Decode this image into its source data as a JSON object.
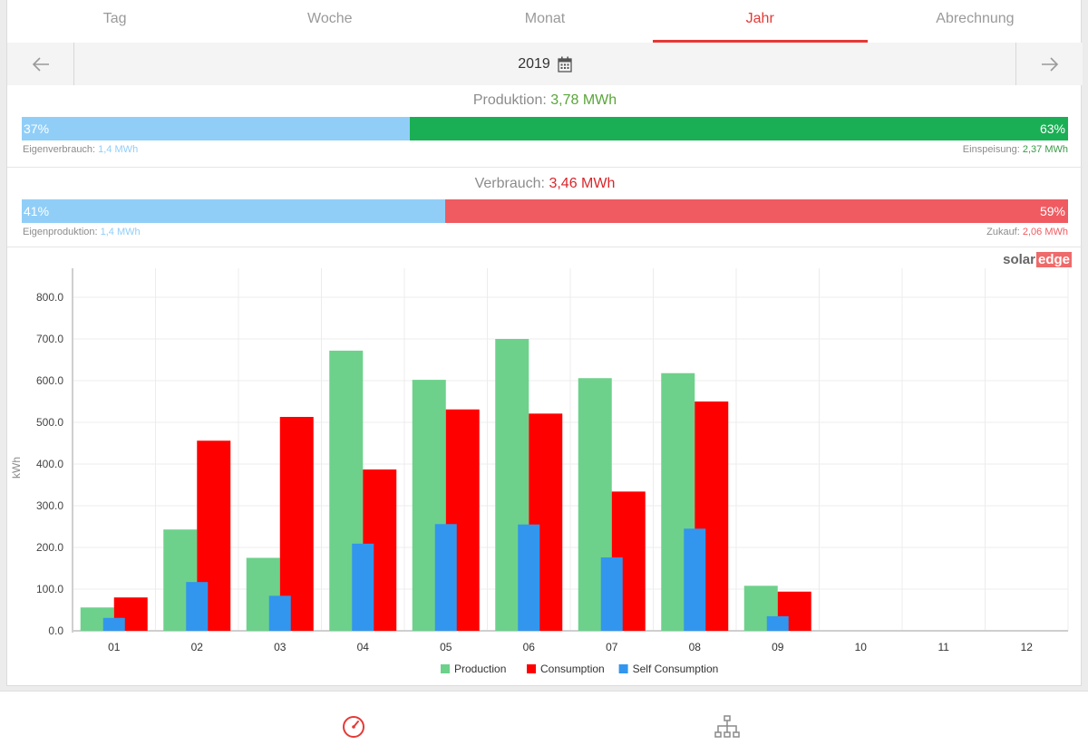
{
  "tabs": [
    {
      "label": "Tag",
      "active": false
    },
    {
      "label": "Woche",
      "active": false
    },
    {
      "label": "Monat",
      "active": false
    },
    {
      "label": "Jahr",
      "active": true
    },
    {
      "label": "Abrechnung",
      "active": false
    }
  ],
  "nav": {
    "year": "2019",
    "prev_icon": "arrow-left-icon",
    "next_icon": "arrow-right-icon",
    "calendar_icon": "calendar-icon"
  },
  "production": {
    "label": "Produktion:",
    "value": "3,78 MWh",
    "left_pct": "37%",
    "right_pct": "63%",
    "left_fraction": 0.371,
    "left_caption": "Eigenverbrauch:",
    "left_value": "1,4 MWh",
    "right_caption": "Einspeisung:",
    "right_value": "2,37 MWh",
    "colors": {
      "left": "#90cef8",
      "right": "#1aaf54",
      "value": "#5aa53a"
    }
  },
  "consumption": {
    "label": "Verbrauch:",
    "value": "3,46 MWh",
    "left_pct": "41%",
    "right_pct": "59%",
    "left_fraction": 0.405,
    "left_caption": "Eigenproduktion:",
    "left_value": "1,4 MWh",
    "right_caption": "Zukauf:",
    "right_value": "2,06 MWh",
    "colors": {
      "left": "#90cef8",
      "right": "#ef5b61",
      "value": "#d9262b"
    }
  },
  "logo": {
    "part1": "solar",
    "part2": "edge"
  },
  "chart_data": {
    "type": "bar",
    "ylabel": "kWh",
    "ylim": [
      0,
      800
    ],
    "yticks": [
      "0.0",
      "100.0",
      "200.0",
      "300.0",
      "400.0",
      "500.0",
      "600.0",
      "700.0",
      "800.0"
    ],
    "categories": [
      "01",
      "02",
      "03",
      "04",
      "05",
      "06",
      "07",
      "08",
      "09",
      "10",
      "11",
      "12"
    ],
    "grid": true,
    "legend": "bottom",
    "series": [
      {
        "name": "Production",
        "color": "#6dd18b",
        "values": [
          56,
          243,
          175,
          672,
          602,
          700,
          606,
          618,
          108,
          0,
          0,
          0
        ]
      },
      {
        "name": "Consumption",
        "color": "#ff0000",
        "values": [
          80,
          456,
          513,
          387,
          531,
          521,
          334,
          550,
          94,
          0,
          0,
          0
        ]
      },
      {
        "name": "Self Consumption",
        "color": "#3296ee",
        "values": [
          31,
          117,
          84,
          209,
          256,
          255,
          176,
          245,
          35,
          0,
          0,
          0
        ]
      }
    ]
  },
  "bottom_nav": {
    "dashboard_icon": "dashboard-gauge-icon",
    "layout_icon": "site-layout-icon",
    "active_color": "#e53935"
  }
}
